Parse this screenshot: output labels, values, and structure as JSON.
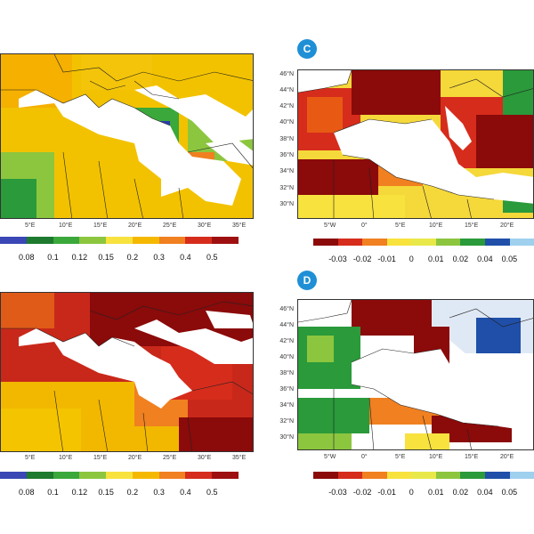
{
  "panels": {
    "A": {
      "label": "",
      "x_ticks": [
        "5°E",
        "10°E",
        "15°E",
        "20°E",
        "25°E",
        "30°E",
        "35°E"
      ]
    },
    "B": {
      "label": "",
      "x_ticks": [
        "5°E",
        "10°E",
        "15°E",
        "20°E",
        "25°E",
        "30°E",
        "35°E"
      ]
    },
    "C": {
      "label": "C",
      "x_ticks": [
        "5°W",
        "0°",
        "5°E",
        "10°E",
        "15°E",
        "20°E"
      ],
      "y_ticks": [
        "46°N",
        "44°N",
        "42°N",
        "40°N",
        "38°N",
        "36°N",
        "34°N",
        "32°N",
        "30°N"
      ]
    },
    "D": {
      "label": "D",
      "x_ticks": [
        "5°W",
        "0°",
        "5°E",
        "10°E",
        "15°E",
        "20°E"
      ],
      "y_ticks": [
        "46°N",
        "44°N",
        "42°N",
        "40°N",
        "38°N",
        "36°N",
        "34°N",
        "32°N",
        "30°N"
      ]
    }
  },
  "colorbar_left": {
    "labels": [
      "0.08",
      "0.1",
      "0.12",
      "0.15",
      "0.2",
      "0.3",
      "0.4",
      "0.5"
    ],
    "colors": [
      "#3a47b5",
      "#1d7a2e",
      "#3aa83a",
      "#8cc63f",
      "#f7e23e",
      "#f5b800",
      "#f08020",
      "#d62c1c",
      "#9e1010"
    ]
  },
  "colorbar_right": {
    "labels": [
      "-0.03",
      "-0.02",
      "-0.01",
      "0",
      "0.01",
      "0.02",
      "0.04",
      "0.05"
    ],
    "colors": [
      "#8b0a0a",
      "#d62c1c",
      "#f08020",
      "#f7e23e",
      "#e8e84a",
      "#8cc63f",
      "#2a9a3a",
      "#1f4fa8",
      "#9fd0ee"
    ]
  }
}
